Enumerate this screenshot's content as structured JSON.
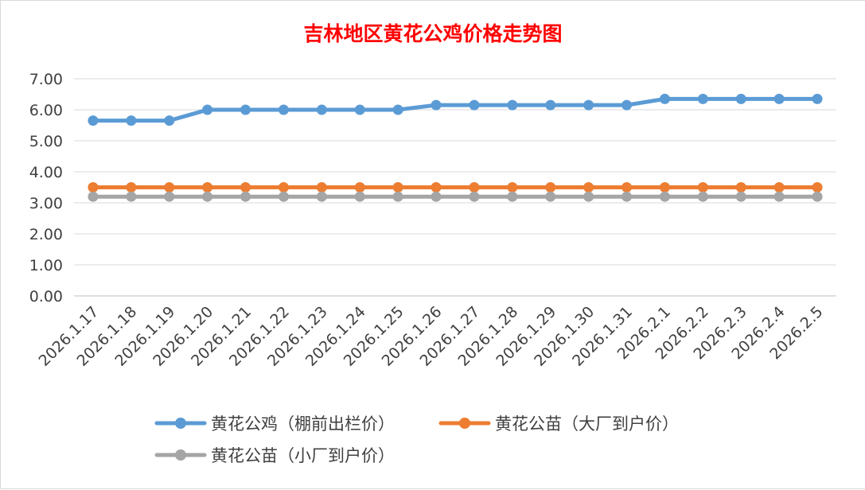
{
  "chart_data": {
    "type": "line",
    "title": "吉林地区黄花公鸡价格走势图",
    "title_color": "#ff0000",
    "categories": [
      "2026.1.17",
      "2026.1.18",
      "2026.1.19",
      "2026.1.20",
      "2026.1.21",
      "2026.1.22",
      "2026.1.23",
      "2026.1.24",
      "2026.1.25",
      "2026.1.26",
      "2026.1.27",
      "2026.1.28",
      "2026.1.29",
      "2026.1.30",
      "2026.1.31",
      "2026.2.1",
      "2026.2.2",
      "2026.2.3",
      "2026.2.4",
      "2026.2.5"
    ],
    "ylim": [
      0,
      7
    ],
    "yticks": [
      "0.00",
      "1.00",
      "2.00",
      "3.00",
      "4.00",
      "5.00",
      "6.00",
      "7.00"
    ],
    "grid": true,
    "legend_position": "bottom",
    "series": [
      {
        "name": "黄花公鸡（棚前出栏价）",
        "color": "#5b9bd5",
        "values": [
          5.65,
          5.65,
          5.65,
          6.0,
          6.0,
          6.0,
          6.0,
          6.0,
          6.0,
          6.15,
          6.15,
          6.15,
          6.15,
          6.15,
          6.15,
          6.35,
          6.35,
          6.35,
          6.35,
          6.35
        ]
      },
      {
        "name": "黄花公苗（大厂到户价）",
        "color": "#ed7d31",
        "values": [
          3.5,
          3.5,
          3.5,
          3.5,
          3.5,
          3.5,
          3.5,
          3.5,
          3.5,
          3.5,
          3.5,
          3.5,
          3.5,
          3.5,
          3.5,
          3.5,
          3.5,
          3.5,
          3.5,
          3.5
        ]
      },
      {
        "name": "黄花公苗（小厂到户价）",
        "color": "#a5a5a5",
        "values": [
          3.2,
          3.2,
          3.2,
          3.2,
          3.2,
          3.2,
          3.2,
          3.2,
          3.2,
          3.2,
          3.2,
          3.2,
          3.2,
          3.2,
          3.2,
          3.2,
          3.2,
          3.2,
          3.2,
          3.2
        ]
      }
    ]
  }
}
